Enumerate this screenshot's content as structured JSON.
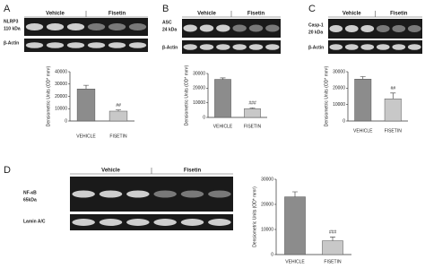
{
  "chart_data": [
    {
      "type": "bar",
      "panel": "A",
      "protein": "NLRP3",
      "size": "110 kDa",
      "loading": "β-Actin",
      "groups": [
        "Vehicle",
        "Fisetin"
      ],
      "ylabel": "Densiometric Units (OD* mm²)",
      "categories": [
        "VEHICLE",
        "FISETIN"
      ],
      "values": [
        26000,
        8000
      ],
      "errors": [
        3000,
        1000
      ],
      "colors": [
        "#8c8c8c",
        "#c8c8c8"
      ],
      "ylim": [
        0,
        40000
      ],
      "yticks": [
        0,
        10000,
        20000,
        30000,
        40000
      ],
      "annotation": "##"
    },
    {
      "type": "bar",
      "panel": "B",
      "protein": "ASC",
      "size": "24 kDa",
      "loading": "β-Actin",
      "groups": [
        "Vehicle",
        "Fisetin"
      ],
      "ylabel": "Densiometric Units (OD* mm²)",
      "categories": [
        "VEHICLE",
        "FISETIN"
      ],
      "values": [
        26000,
        6000
      ],
      "errors": [
        1000,
        500
      ],
      "colors": [
        "#8c8c8c",
        "#c8c8c8"
      ],
      "ylim": [
        0,
        30000
      ],
      "yticks": [
        0,
        10000,
        20000,
        30000
      ],
      "annotation": "###"
    },
    {
      "type": "bar",
      "panel": "C",
      "protein": "Casp-1",
      "size": "20 kDa",
      "loading": "β-Actin",
      "groups": [
        "Vehicle",
        "Fisetin"
      ],
      "ylabel": "Densiometric Units (OD* mm²)",
      "categories": [
        "VEHICLE",
        "FISETIN"
      ],
      "values": [
        25500,
        13500
      ],
      "errors": [
        1500,
        3500
      ],
      "colors": [
        "#8c8c8c",
        "#c8c8c8"
      ],
      "ylim": [
        0,
        30000
      ],
      "yticks": [
        0,
        10000,
        20000,
        30000
      ],
      "annotation": "##"
    },
    {
      "type": "bar",
      "panel": "D",
      "protein": "NF-κB",
      "size": "65kDa",
      "loading": "Lamin A/C",
      "groups": [
        "Vehicle",
        "Fisetin"
      ],
      "ylabel": "Densiometric Units (OD* mm²)",
      "categories": [
        "VEHICLE",
        "FISETIN"
      ],
      "values": [
        23000,
        5500
      ],
      "errors": [
        2000,
        1500
      ],
      "colors": [
        "#8c8c8c",
        "#c8c8c8"
      ],
      "ylim": [
        0,
        30000
      ],
      "yticks": [
        0,
        10000,
        20000,
        30000
      ],
      "annotation": "###"
    }
  ]
}
